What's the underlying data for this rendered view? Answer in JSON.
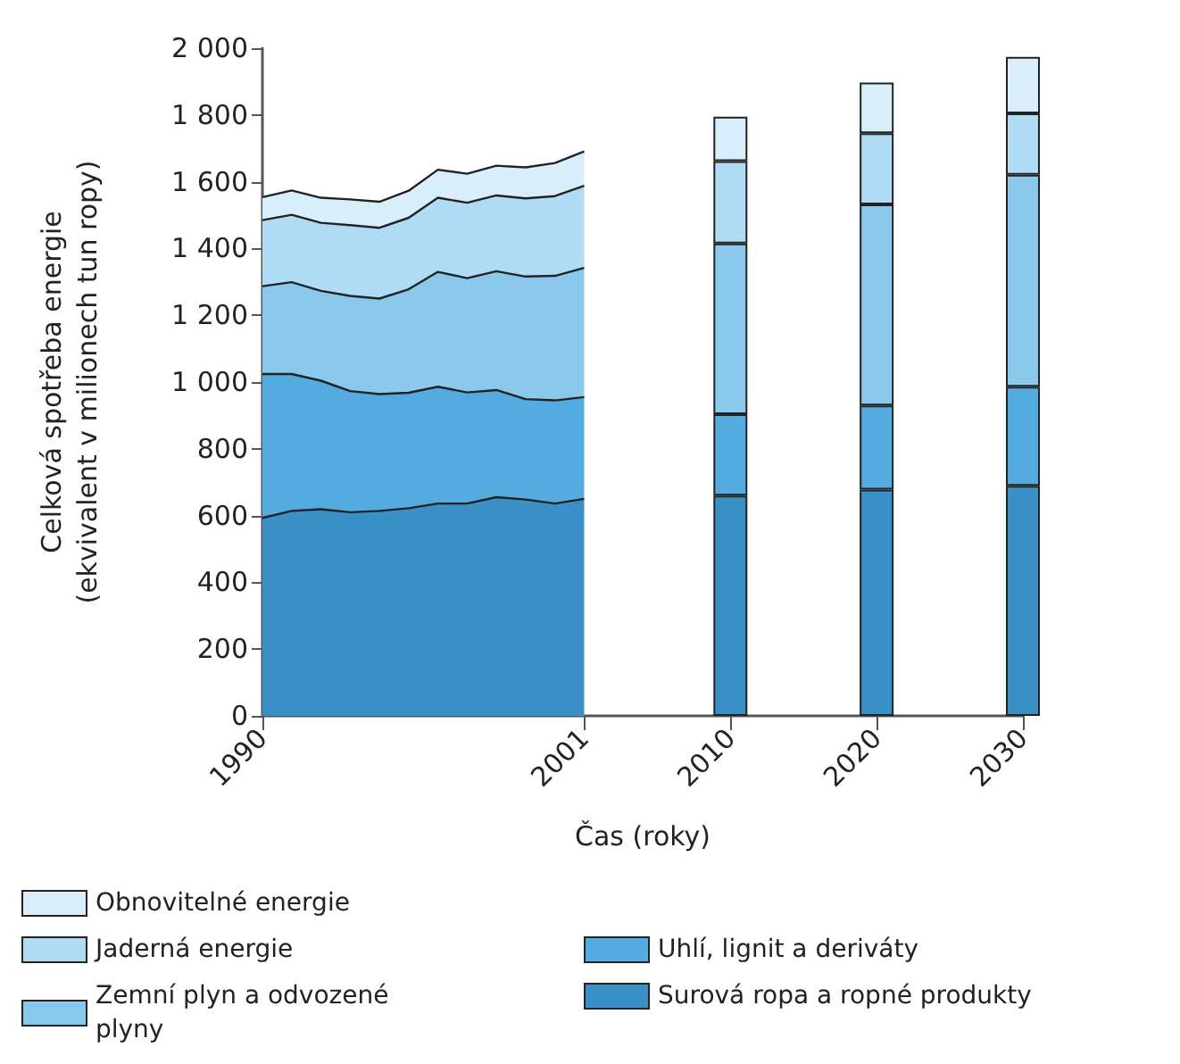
{
  "chart_data": {
    "type": "area",
    "stacked": true,
    "xlabel": "Čas (roky)",
    "ylabel": "Celková spotřeba energie\n(ekvivalent v milionech tun ropy)",
    "categories": [
      "1990",
      null,
      null,
      null,
      null,
      null,
      null,
      null,
      null,
      null,
      null,
      "2001",
      null,
      null,
      null,
      null,
      "2010",
      null,
      null,
      null,
      null,
      "2020",
      null,
      null,
      null,
      null,
      "2030"
    ],
    "ylim": [
      0,
      2000
    ],
    "yticks": [
      0,
      200,
      400,
      600,
      800,
      {
        "value": 1000,
        "label": "1 000"
      },
      {
        "value": 1200,
        "label": "1 200"
      },
      {
        "value": 1400,
        "label": "1 400"
      },
      {
        "value": 1600,
        "label": "1 600"
      },
      {
        "value": 1800,
        "label": "1 800"
      },
      {
        "value": 2000,
        "label": "2 000"
      }
    ],
    "legend": "bottom",
    "grid": false,
    "series": [
      {
        "name": "Surová ropa a ropné produkty",
        "color": "#3b90c7",
        "values": [
          593,
          614,
          619,
          610,
          614,
          622,
          636,
          636,
          655,
          648,
          636,
          650,
          null,
          null,
          null,
          null,
          null,
          null,
          null,
          null,
          null,
          null,
          null,
          null,
          null,
          null,
          null
        ]
      },
      {
        "name": "Uhlí, lignit a deriváty",
        "color": "#53abe0",
        "values": [
          431,
          410,
          385,
          363,
          350,
          346,
          350,
          333,
          321,
          301,
          309,
          305,
          null,
          null,
          null,
          null,
          null,
          null,
          null,
          null,
          null,
          null,
          null,
          null,
          null,
          null,
          null
        ]
      },
      {
        "name": "Zemní plyn a odvozené plyny",
        "color": "#8ac8ec",
        "values": [
          263,
          275,
          269,
          285,
          286,
          310,
          344,
          342,
          356,
          367,
          373,
          387,
          null,
          null,
          null,
          null,
          null,
          null,
          null,
          null,
          null,
          null,
          null,
          null,
          null,
          null,
          null
        ]
      },
      {
        "name": "Jaderná energie",
        "color": "#afdbf5",
        "values": [
          198,
          202,
          204,
          212,
          212,
          214,
          222,
          226,
          227,
          234,
          239,
          246,
          null,
          null,
          null,
          null,
          null,
          null,
          null,
          null,
          null,
          null,
          null,
          null,
          null,
          null,
          null
        ]
      },
      {
        "name": "Obnovitelné energie",
        "color": "#d9eefb",
        "values": [
          69,
          73,
          75,
          77,
          78,
          81,
          84,
          87,
          89,
          93,
          99,
          103,
          null,
          null,
          null,
          null,
          null,
          null,
          null,
          null,
          null,
          null,
          null,
          null,
          null,
          null,
          null
        ]
      },
      {
        "type": "bar",
        "color": "#3b90c7",
        "values": [
          null,
          null,
          null,
          null,
          null,
          null,
          null,
          null,
          null,
          null,
          null,
          null,
          null,
          null,
          null,
          null,
          660,
          null,
          null,
          null,
          null,
          678,
          null,
          null,
          null,
          null,
          689
        ]
      },
      {
        "type": "bar",
        "color": "#53abe0",
        "values": [
          null,
          null,
          null,
          null,
          null,
          null,
          null,
          null,
          null,
          null,
          null,
          null,
          null,
          null,
          null,
          null,
          244,
          null,
          null,
          null,
          null,
          252,
          null,
          null,
          null,
          null,
          297
        ]
      },
      {
        "type": "bar",
        "color": "#8ac8ec",
        "values": [
          null,
          null,
          null,
          null,
          null,
          null,
          null,
          null,
          null,
          null,
          null,
          null,
          null,
          null,
          null,
          null,
          511,
          null,
          null,
          null,
          null,
          602,
          null,
          null,
          null,
          null,
          635
        ]
      },
      {
        "type": "bar",
        "color": "#afdbf5",
        "values": [
          null,
          null,
          null,
          null,
          null,
          null,
          null,
          null,
          null,
          null,
          null,
          null,
          null,
          null,
          null,
          null,
          247,
          null,
          null,
          null,
          null,
          213,
          null,
          null,
          null,
          null,
          184
        ]
      },
      {
        "type": "bar",
        "color": "#d9eefb",
        "values": [
          null,
          null,
          null,
          null,
          null,
          null,
          null,
          null,
          null,
          null,
          null,
          null,
          null,
          null,
          null,
          null,
          133,
          null,
          null,
          null,
          null,
          152,
          null,
          null,
          null,
          null,
          169
        ]
      }
    ]
  }
}
